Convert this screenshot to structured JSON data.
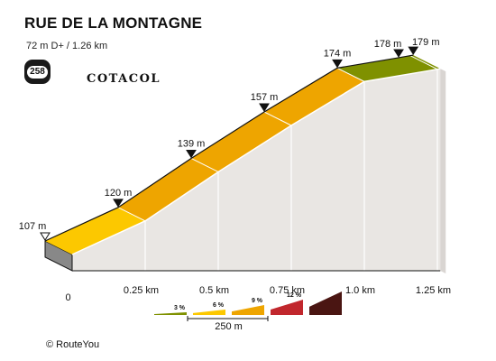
{
  "header": {
    "title": "RUE DE LA MONTAGNE",
    "subtitle": "72 m D+ / 1.26 km"
  },
  "badge": {
    "number": "258",
    "brand": "COTACOL"
  },
  "footer": {
    "copyright": "© RouteYou"
  },
  "chart_data": {
    "type": "area",
    "xlim": [
      0,
      1.26
    ],
    "x_ticks": [
      {
        "value": 0,
        "label": "0"
      },
      {
        "value": 0.25,
        "label": "0.25 km"
      },
      {
        "value": 0.5,
        "label": "0.5 km"
      },
      {
        "value": 0.75,
        "label": "0.75 km"
      },
      {
        "value": 1.0,
        "label": "1.0 km"
      },
      {
        "value": 1.25,
        "label": "1.25 km"
      }
    ],
    "profile": [
      {
        "x": 0,
        "y": 107,
        "label": "107 m"
      },
      {
        "x": 0.25,
        "y": 120,
        "label": "120 m"
      },
      {
        "x": 0.5,
        "y": 139,
        "label": "139 m"
      },
      {
        "x": 0.75,
        "y": 157,
        "label": "157 m"
      },
      {
        "x": 1.0,
        "y": 174,
        "label": "174 m"
      },
      {
        "x": 1.21,
        "y": 178,
        "label": "178 m"
      },
      {
        "x": 1.26,
        "y": 179,
        "label": "179 m"
      }
    ],
    "segments": [
      {
        "from": 0,
        "to": 0.25,
        "color": "#fcc800"
      },
      {
        "from": 0.25,
        "to": 1.0,
        "color": "#eea500"
      },
      {
        "from": 1.0,
        "to": 1.26,
        "color": "#7f9100"
      }
    ],
    "legend": {
      "items": [
        {
          "label": "3 %",
          "color": "#7f9100"
        },
        {
          "label": "6 %",
          "color": "#fcc800"
        },
        {
          "label": "9 %",
          "color": "#eea500"
        },
        {
          "label": "12 %",
          "color": "#c1272d"
        },
        {
          "label": "",
          "color": "#4a1512"
        }
      ],
      "scale_label": "250 m"
    },
    "colors": {
      "side_face": "#e9e6e3",
      "base": "#888888",
      "outline": "#111111"
    }
  }
}
